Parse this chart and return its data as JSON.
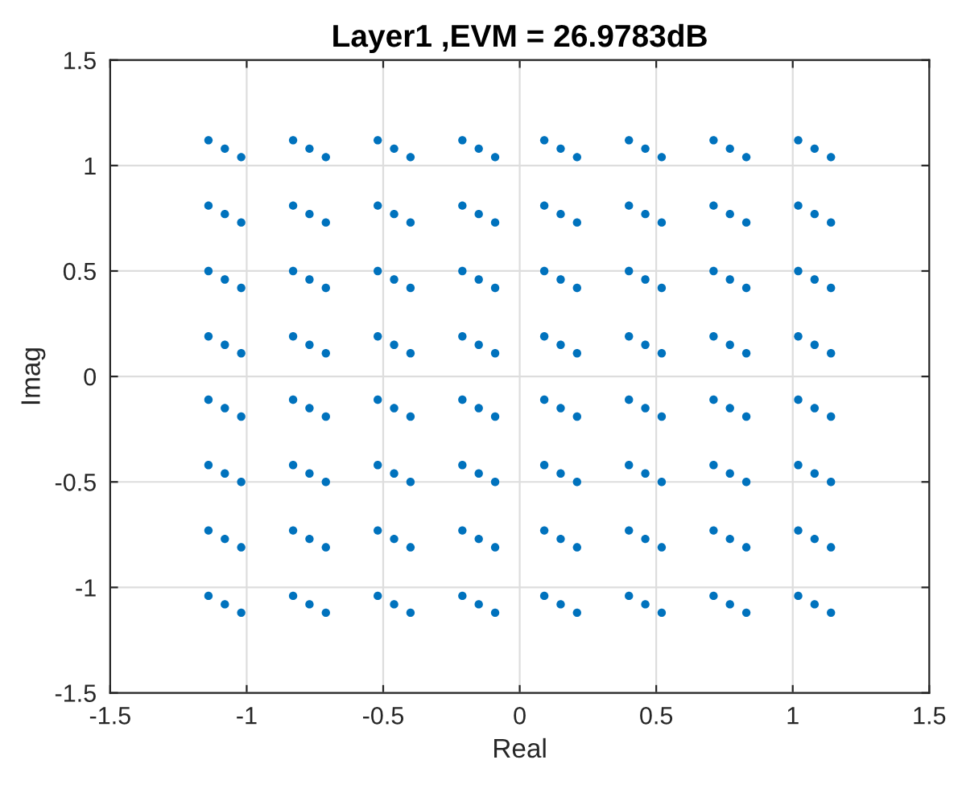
{
  "chart_data": {
    "type": "scatter",
    "title": "Layer1 ,EVM = 26.9783dB",
    "xlabel": "Real",
    "ylabel": "Imag",
    "x": [
      -1.08,
      -1.14,
      -1.02,
      -0.77,
      -0.83,
      -0.71,
      -0.46,
      -0.52,
      -0.4,
      -0.15,
      -0.21,
      -0.09,
      0.15,
      0.09,
      0.21,
      0.46,
      0.4,
      0.52,
      0.77,
      0.71,
      0.83,
      1.08,
      1.02,
      1.14,
      -1.08,
      -1.14,
      -1.02,
      -0.77,
      -0.83,
      -0.71,
      -0.46,
      -0.52,
      -0.4,
      -0.15,
      -0.21,
      -0.09,
      0.15,
      0.09,
      0.21,
      0.46,
      0.4,
      0.52,
      0.77,
      0.71,
      0.83,
      1.08,
      1.02,
      1.14,
      -1.08,
      -1.14,
      -1.02,
      -0.77,
      -0.83,
      -0.71,
      -0.46,
      -0.52,
      -0.4,
      -0.15,
      -0.21,
      -0.09,
      0.15,
      0.09,
      0.21,
      0.46,
      0.4,
      0.52,
      0.77,
      0.71,
      0.83,
      1.08,
      1.02,
      1.14,
      -1.08,
      -1.14,
      -1.02,
      -0.77,
      -0.83,
      -0.71,
      -0.46,
      -0.52,
      -0.4,
      -0.15,
      -0.21,
      -0.09,
      0.15,
      0.09,
      0.21,
      0.46,
      0.4,
      0.52,
      0.77,
      0.71,
      0.83,
      1.08,
      1.02,
      1.14,
      -1.08,
      -1.14,
      -1.02,
      -0.77,
      -0.83,
      -0.71,
      -0.46,
      -0.52,
      -0.4,
      -0.15,
      -0.21,
      -0.09,
      0.15,
      0.09,
      0.21,
      0.46,
      0.4,
      0.52,
      0.77,
      0.71,
      0.83,
      1.08,
      1.02,
      1.14,
      -1.08,
      -1.14,
      -1.02,
      -0.77,
      -0.83,
      -0.71,
      -0.46,
      -0.52,
      -0.4,
      -0.15,
      -0.21,
      -0.09,
      0.15,
      0.09,
      0.21,
      0.46,
      0.4,
      0.52,
      0.77,
      0.71,
      0.83,
      1.08,
      1.02,
      1.14,
      -1.08,
      -1.14,
      -1.02,
      -0.77,
      -0.83,
      -0.71,
      -0.46,
      -0.52,
      -0.4,
      -0.15,
      -0.21,
      -0.09,
      0.15,
      0.09,
      0.21,
      0.46,
      0.4,
      0.52,
      0.77,
      0.71,
      0.83,
      1.08,
      1.02,
      1.14,
      -1.08,
      -1.14,
      -1.02,
      -0.77,
      -0.83,
      -0.71,
      -0.46,
      -0.52,
      -0.4,
      -0.15,
      -0.21,
      -0.09,
      0.15,
      0.09,
      0.21,
      0.46,
      0.4,
      0.52,
      0.77,
      0.71,
      0.83,
      1.08,
      1.02,
      1.14
    ],
    "series": [
      {
        "color": "#0072bd",
        "values": [
          1.08,
          1.12,
          1.04,
          1.08,
          1.12,
          1.04,
          1.08,
          1.12,
          1.04,
          1.08,
          1.12,
          1.04,
          1.08,
          1.12,
          1.04,
          1.08,
          1.12,
          1.04,
          1.08,
          1.12,
          1.04,
          1.08,
          1.12,
          1.04,
          0.77,
          0.81,
          0.73,
          0.77,
          0.81,
          0.73,
          0.77,
          0.81,
          0.73,
          0.77,
          0.81,
          0.73,
          0.77,
          0.81,
          0.73,
          0.77,
          0.81,
          0.73,
          0.77,
          0.81,
          0.73,
          0.77,
          0.81,
          0.73,
          0.46,
          0.5,
          0.42,
          0.46,
          0.5,
          0.42,
          0.46,
          0.5,
          0.42,
          0.46,
          0.5,
          0.42,
          0.46,
          0.5,
          0.42,
          0.46,
          0.5,
          0.42,
          0.46,
          0.5,
          0.42,
          0.46,
          0.5,
          0.42,
          0.15,
          0.19,
          0.11,
          0.15,
          0.19,
          0.11,
          0.15,
          0.19,
          0.11,
          0.15,
          0.19,
          0.11,
          0.15,
          0.19,
          0.11,
          0.15,
          0.19,
          0.11,
          0.15,
          0.19,
          0.11,
          0.15,
          0.19,
          0.11,
          -0.15,
          -0.11,
          -0.19,
          -0.15,
          -0.11,
          -0.19,
          -0.15,
          -0.11,
          -0.19,
          -0.15,
          -0.11,
          -0.19,
          -0.15,
          -0.11,
          -0.19,
          -0.15,
          -0.11,
          -0.19,
          -0.15,
          -0.11,
          -0.19,
          -0.15,
          -0.11,
          -0.19,
          -0.46,
          -0.42,
          -0.5,
          -0.46,
          -0.42,
          -0.5,
          -0.46,
          -0.42,
          -0.5,
          -0.46,
          -0.42,
          -0.5,
          -0.46,
          -0.42,
          -0.5,
          -0.46,
          -0.42,
          -0.5,
          -0.46,
          -0.42,
          -0.5,
          -0.46,
          -0.42,
          -0.5,
          -0.77,
          -0.73,
          -0.81,
          -0.77,
          -0.73,
          -0.81,
          -0.77,
          -0.73,
          -0.81,
          -0.77,
          -0.73,
          -0.81,
          -0.77,
          -0.73,
          -0.81,
          -0.77,
          -0.73,
          -0.81,
          -0.77,
          -0.73,
          -0.81,
          -0.77,
          -0.73,
          -0.81,
          -1.08,
          -1.04,
          -1.12,
          -1.08,
          -1.04,
          -1.12,
          -1.08,
          -1.04,
          -1.12,
          -1.08,
          -1.04,
          -1.12,
          -1.08,
          -1.04,
          -1.12,
          -1.08,
          -1.04,
          -1.12,
          -1.08,
          -1.04,
          -1.12,
          -1.08,
          -1.04,
          -1.12
        ]
      }
    ],
    "xlim": [
      -1.5,
      1.5
    ],
    "xticks": [
      -1.5,
      -1,
      -0.5,
      0,
      0.5,
      1,
      1.5
    ],
    "ylim": [
      -1.5,
      1.5
    ],
    "yticks": [
      -1.5,
      -1,
      -0.5,
      0,
      0.5,
      1,
      1.5
    ],
    "grid": true,
    "marker": "circle"
  }
}
